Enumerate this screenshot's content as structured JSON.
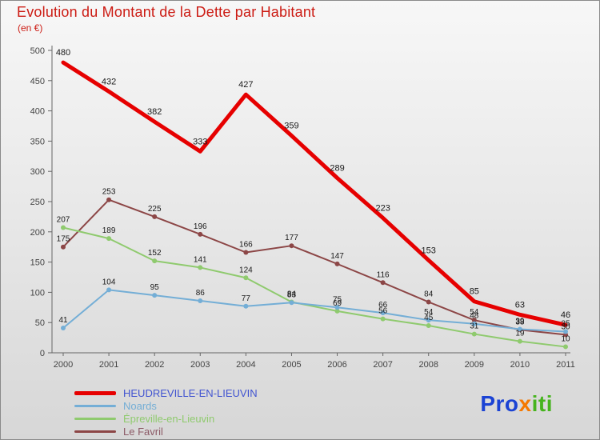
{
  "page": {
    "title": "Evolution du Montant de la Dette par Habitant",
    "subtitle": "(en €)"
  },
  "chart_data": {
    "type": "line",
    "x": [
      "2000",
      "2001",
      "2002",
      "2003",
      "2004",
      "2005",
      "2006",
      "2007",
      "2008",
      "2009",
      "2010",
      "2011"
    ],
    "ylim": [
      0,
      500
    ],
    "yticks": [
      0,
      50,
      100,
      150,
      200,
      250,
      300,
      350,
      400,
      450,
      500
    ],
    "grid": false,
    "legend_position": "bottom-left",
    "series": [
      {
        "name": "HEUDREVILLE-EN-LIEUVIN",
        "color": "#e60000",
        "label_color": "#4053d0",
        "width": 5,
        "values": [
          480,
          432,
          382,
          333,
          427,
          359,
          289,
          223,
          153,
          85,
          63,
          46
        ]
      },
      {
        "name": "Noards",
        "color": "#74aed6",
        "label_color": "#74aed6",
        "width": 2,
        "values": [
          41,
          104,
          95,
          86,
          77,
          83,
          75,
          66,
          54,
          48,
          39,
          35
        ]
      },
      {
        "name": "Épreville-en-Lieuvin",
        "color": "#8fca6e",
        "label_color": "#8fca6e",
        "width": 2,
        "values": [
          207,
          189,
          152,
          141,
          124,
          84,
          69,
          56,
          45,
          31,
          19,
          10
        ]
      },
      {
        "name": "Le Favril",
        "color": "#8c4646",
        "label_color": "#8c5a66",
        "width": 2,
        "values": [
          175,
          253,
          225,
          196,
          166,
          177,
          147,
          116,
          84,
          54,
          38,
          30
        ]
      }
    ],
    "value_label_color": "#1a1a1a",
    "axis_color": "#666666",
    "tick_label_color": "#444444"
  },
  "logo": {
    "parts": [
      {
        "text": "Pro",
        "color": "#1b43d4"
      },
      {
        "text": "x",
        "color": "#f57900"
      },
      {
        "text": "iti",
        "color": "#46b41e"
      }
    ]
  }
}
